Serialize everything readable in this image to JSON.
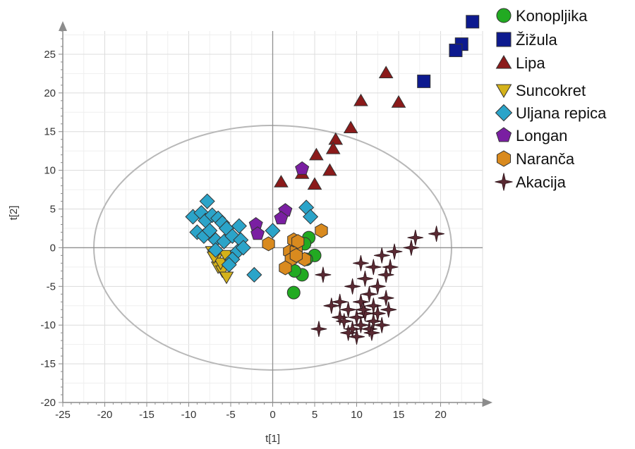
{
  "chart_data": {
    "type": "scatter",
    "title": "",
    "xlabel": "t[1]",
    "ylabel": "t[2]",
    "xlim": [
      -25,
      25
    ],
    "ylim": [
      -20,
      28
    ],
    "xticks": [
      -25,
      -20,
      -15,
      -10,
      -5,
      0,
      5,
      10,
      15,
      20
    ],
    "yticks": [
      -20,
      -15,
      -10,
      -5,
      0,
      5,
      10,
      15,
      20,
      25
    ],
    "grid": true,
    "legend_position": "right",
    "ellipse": {
      "cx": 0,
      "cy": 0,
      "rx": 21.3,
      "ry": 15.8
    },
    "series": [
      {
        "name": "Konopljika",
        "marker": "circle",
        "color": "#22aa22",
        "points": [
          [
            2.5,
            -5.8
          ],
          [
            3.5,
            -3.5
          ],
          [
            2.6,
            -3.0
          ],
          [
            4.3,
            1.3
          ],
          [
            5.0,
            -1.0
          ],
          [
            4.0,
            -1.5
          ],
          [
            3.8,
            0.5
          ]
        ]
      },
      {
        "name": "Žižula",
        "marker": "square",
        "color": "#0d1a8f",
        "points": [
          [
            23.8,
            29.2
          ],
          [
            22.5,
            26.3
          ],
          [
            21.8,
            25.5
          ],
          [
            18.0,
            21.5
          ]
        ]
      },
      {
        "name": "Lipa",
        "marker": "triangle",
        "color": "#8b1a1a",
        "points": [
          [
            13.5,
            22.6
          ],
          [
            15.0,
            18.8
          ],
          [
            10.5,
            19.0
          ],
          [
            9.3,
            15.5
          ],
          [
            7.5,
            14.0
          ],
          [
            7.2,
            12.8
          ],
          [
            5.2,
            12.0
          ],
          [
            6.8,
            10.0
          ],
          [
            3.5,
            9.6
          ],
          [
            5.0,
            8.2
          ],
          [
            1.0,
            8.5
          ]
        ]
      },
      {
        "name": "Suncokret",
        "marker": "triangle-down",
        "color": "#d4b21a",
        "points": [
          [
            -7.2,
            -0.5
          ],
          [
            -6.8,
            -1.5
          ],
          [
            -6.5,
            -2.5
          ],
          [
            -6.0,
            -3.0
          ],
          [
            -5.5,
            -3.8
          ],
          [
            -6.2,
            -2.0
          ],
          [
            -5.6,
            -1.0
          ],
          [
            -7.0,
            -1.2
          ]
        ]
      },
      {
        "name": "Uljana repica",
        "marker": "diamond",
        "color": "#2ba4c9",
        "points": [
          [
            -7.8,
            6.0
          ],
          [
            -9.5,
            4.0
          ],
          [
            -8.5,
            4.5
          ],
          [
            -8.0,
            3.5
          ],
          [
            -7.2,
            4.2
          ],
          [
            -6.5,
            3.8
          ],
          [
            -6.0,
            3.2
          ],
          [
            -5.5,
            2.5
          ],
          [
            -9.0,
            2.0
          ],
          [
            -8.2,
            1.5
          ],
          [
            -7.5,
            2.2
          ],
          [
            -6.8,
            1.0
          ],
          [
            -5.8,
            0.8
          ],
          [
            -4.8,
            1.5
          ],
          [
            -4.0,
            2.8
          ],
          [
            -3.8,
            1.0
          ],
          [
            -4.2,
            -0.5
          ],
          [
            -4.8,
            -1.5
          ],
          [
            -6.8,
            -0.3
          ],
          [
            -5.2,
            -2.2
          ],
          [
            -2.2,
            -3.5
          ],
          [
            4.0,
            5.2
          ],
          [
            4.5,
            4.0
          ],
          [
            0.0,
            2.2
          ],
          [
            -3.5,
            0.0
          ]
        ]
      },
      {
        "name": "Longan",
        "marker": "pentagon",
        "color": "#7a1fa2",
        "points": [
          [
            3.5,
            10.2
          ],
          [
            1.5,
            4.8
          ],
          [
            1.0,
            3.8
          ],
          [
            -2.0,
            3.0
          ],
          [
            -1.8,
            1.8
          ]
        ]
      },
      {
        "name": "Naranča",
        "marker": "hexagon",
        "color": "#d98a1e",
        "points": [
          [
            -0.5,
            0.5
          ],
          [
            2.0,
            -0.5
          ],
          [
            2.8,
            -0.3
          ],
          [
            3.8,
            -1.5
          ],
          [
            2.2,
            -1.5
          ],
          [
            1.5,
            -2.6
          ],
          [
            2.5,
            1.0
          ],
          [
            5.8,
            2.2
          ],
          [
            3.0,
            0.8
          ],
          [
            2.8,
            -1.0
          ]
        ]
      },
      {
        "name": "Akacija",
        "marker": "star4",
        "color": "#5a2a33",
        "points": [
          [
            19.5,
            1.8
          ],
          [
            17.0,
            1.3
          ],
          [
            16.5,
            0.0
          ],
          [
            14.5,
            -0.5
          ],
          [
            13.0,
            -1.0
          ],
          [
            12.0,
            -2.5
          ],
          [
            10.5,
            -2.0
          ],
          [
            14.0,
            -2.5
          ],
          [
            13.5,
            -3.5
          ],
          [
            11.0,
            -4.0
          ],
          [
            9.5,
            -5.0
          ],
          [
            12.5,
            -5.0
          ],
          [
            11.5,
            -6.0
          ],
          [
            10.5,
            -7.0
          ],
          [
            13.5,
            -6.5
          ],
          [
            12.0,
            -7.5
          ],
          [
            8.0,
            -7.0
          ],
          [
            9.0,
            -8.0
          ],
          [
            10.0,
            -9.0
          ],
          [
            11.0,
            -8.5
          ],
          [
            12.5,
            -8.5
          ],
          [
            13.8,
            -8.0
          ],
          [
            8.5,
            -9.5
          ],
          [
            9.5,
            -10.5
          ],
          [
            10.5,
            -10.0
          ],
          [
            11.5,
            -10.5
          ],
          [
            12.0,
            -9.5
          ],
          [
            10.0,
            -11.5
          ],
          [
            9.0,
            -11.0
          ],
          [
            6.0,
            -3.5
          ],
          [
            5.5,
            -10.5
          ],
          [
            7.0,
            -7.5
          ],
          [
            8.0,
            -9.0
          ],
          [
            10.8,
            -8.0
          ],
          [
            11.8,
            -11.0
          ],
          [
            13.0,
            -10.0
          ]
        ]
      }
    ]
  }
}
